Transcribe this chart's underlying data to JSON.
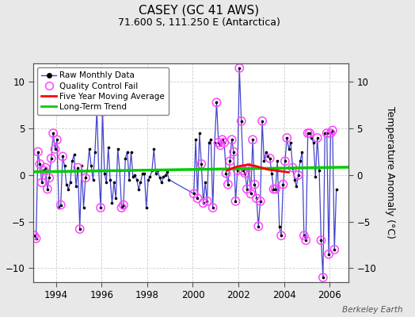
{
  "title": "CASEY (GC 41 AWS)",
  "subtitle": "71.600 S, 111.250 E (Antarctica)",
  "ylabel": "Temperature Anomaly (°C)",
  "watermark": "Berkeley Earth",
  "xlim": [
    1993.0,
    2006.83
  ],
  "ylim": [
    -11.5,
    12.0
  ],
  "yticks": [
    -10,
    -5,
    0,
    5,
    10
  ],
  "xticks": [
    1994,
    1996,
    1998,
    2000,
    2002,
    2004,
    2006
  ],
  "bg_color": "#e8e8e8",
  "plot_bg_color": "#ffffff",
  "grid_color": "#cccccc",
  "line_color": "#4444cc",
  "marker_color": "#000000",
  "qc_fail_color": "#ff44ff",
  "moving_avg_color": "#ff0000",
  "trend_color": "#00cc00",
  "raw_data": [
    [
      1993.042,
      -6.5
    ],
    [
      1993.125,
      -6.8
    ],
    [
      1993.208,
      2.5
    ],
    [
      1993.292,
      1.2
    ],
    [
      1993.375,
      -0.8
    ],
    [
      1993.458,
      0.5
    ],
    [
      1993.542,
      0.8
    ],
    [
      1993.625,
      -1.5
    ],
    [
      1993.708,
      -0.3
    ],
    [
      1993.792,
      1.8
    ],
    [
      1993.875,
      4.5
    ],
    [
      1993.958,
      2.8
    ],
    [
      1994.042,
      3.8
    ],
    [
      1994.125,
      -3.5
    ],
    [
      1994.208,
      -3.2
    ],
    [
      1994.292,
      2.0
    ],
    [
      1994.375,
      1.0
    ],
    [
      1994.458,
      -1.0
    ],
    [
      1994.542,
      -1.5
    ],
    [
      1994.625,
      -0.8
    ],
    [
      1994.708,
      1.5
    ],
    [
      1994.792,
      2.2
    ],
    [
      1994.875,
      -1.2
    ],
    [
      1994.958,
      0.8
    ],
    [
      1995.042,
      -5.8
    ],
    [
      1995.125,
      1.0
    ],
    [
      1995.208,
      -3.5
    ],
    [
      1995.292,
      -0.3
    ],
    [
      1995.375,
      0.5
    ],
    [
      1995.458,
      2.8
    ],
    [
      1995.542,
      1.0
    ],
    [
      1995.625,
      -0.5
    ],
    [
      1995.708,
      2.5
    ],
    [
      1995.792,
      7.0
    ],
    [
      1995.875,
      0.5
    ],
    [
      1995.958,
      -3.5
    ],
    [
      1996.042,
      6.8
    ],
    [
      1996.125,
      0.2
    ],
    [
      1996.208,
      -0.8
    ],
    [
      1996.292,
      3.0
    ],
    [
      1996.375,
      -0.5
    ],
    [
      1996.458,
      -3.0
    ],
    [
      1996.542,
      -0.8
    ],
    [
      1996.625,
      -2.5
    ],
    [
      1996.708,
      2.8
    ],
    [
      1996.792,
      0.5
    ],
    [
      1996.875,
      -3.5
    ],
    [
      1996.958,
      -3.2
    ],
    [
      1997.042,
      1.8
    ],
    [
      1997.125,
      2.5
    ],
    [
      1997.208,
      -0.5
    ],
    [
      1997.292,
      2.5
    ],
    [
      1997.375,
      -0.2
    ],
    [
      1997.458,
      0.0
    ],
    [
      1997.542,
      -0.5
    ],
    [
      1997.625,
      -1.5
    ],
    [
      1997.708,
      -0.8
    ],
    [
      1997.792,
      0.2
    ],
    [
      1997.875,
      0.2
    ],
    [
      1997.958,
      -3.5
    ],
    [
      1998.042,
      -0.5
    ],
    [
      1998.125,
      -0.2
    ],
    [
      1998.208,
      0.5
    ],
    [
      1998.292,
      2.8
    ],
    [
      1998.375,
      0.2
    ],
    [
      1998.458,
      0.5
    ],
    [
      1998.542,
      -0.3
    ],
    [
      1998.625,
      -0.8
    ],
    [
      1998.708,
      -0.2
    ],
    [
      1998.792,
      0.0
    ],
    [
      1998.875,
      0.3
    ],
    [
      1998.958,
      -0.5
    ],
    [
      2000.042,
      -2.0
    ],
    [
      2000.125,
      3.8
    ],
    [
      2000.208,
      -2.5
    ],
    [
      2000.292,
      4.5
    ],
    [
      2000.375,
      1.2
    ],
    [
      2000.458,
      -3.0
    ],
    [
      2000.542,
      -0.8
    ],
    [
      2000.625,
      -2.8
    ],
    [
      2000.708,
      3.5
    ],
    [
      2000.792,
      3.8
    ],
    [
      2000.875,
      -3.5
    ],
    [
      2000.958,
      3.5
    ],
    [
      2001.042,
      7.8
    ],
    [
      2001.125,
      3.5
    ],
    [
      2001.208,
      3.2
    ],
    [
      2001.292,
      3.8
    ],
    [
      2001.375,
      3.5
    ],
    [
      2001.458,
      0.2
    ],
    [
      2001.542,
      -1.0
    ],
    [
      2001.625,
      1.5
    ],
    [
      2001.708,
      3.8
    ],
    [
      2001.792,
      2.5
    ],
    [
      2001.875,
      -2.8
    ],
    [
      2001.958,
      0.5
    ],
    [
      2002.042,
      11.5
    ],
    [
      2002.125,
      5.8
    ],
    [
      2002.208,
      0.5
    ],
    [
      2002.292,
      0.2
    ],
    [
      2002.375,
      -1.5
    ],
    [
      2002.458,
      0.8
    ],
    [
      2002.542,
      -2.0
    ],
    [
      2002.625,
      3.8
    ],
    [
      2002.708,
      -1.0
    ],
    [
      2002.792,
      -2.5
    ],
    [
      2002.875,
      -5.5
    ],
    [
      2002.958,
      -2.8
    ],
    [
      2003.042,
      5.8
    ],
    [
      2003.125,
      1.5
    ],
    [
      2003.208,
      2.5
    ],
    [
      2003.292,
      2.0
    ],
    [
      2003.375,
      1.8
    ],
    [
      2003.458,
      0.2
    ],
    [
      2003.542,
      -1.5
    ],
    [
      2003.625,
      -1.5
    ],
    [
      2003.708,
      1.5
    ],
    [
      2003.792,
      -5.5
    ],
    [
      2003.875,
      -6.5
    ],
    [
      2003.958,
      -1.0
    ],
    [
      2004.042,
      1.5
    ],
    [
      2004.125,
      4.0
    ],
    [
      2004.208,
      2.8
    ],
    [
      2004.292,
      3.5
    ],
    [
      2004.375,
      0.8
    ],
    [
      2004.458,
      -0.5
    ],
    [
      2004.542,
      -1.2
    ],
    [
      2004.625,
      0.0
    ],
    [
      2004.708,
      1.5
    ],
    [
      2004.792,
      2.5
    ],
    [
      2004.875,
      -6.5
    ],
    [
      2004.958,
      -7.0
    ],
    [
      2005.042,
      4.5
    ],
    [
      2005.125,
      4.5
    ],
    [
      2005.208,
      4.0
    ],
    [
      2005.292,
      3.5
    ],
    [
      2005.375,
      -0.2
    ],
    [
      2005.458,
      4.0
    ],
    [
      2005.542,
      0.5
    ],
    [
      2005.625,
      -7.0
    ],
    [
      2005.708,
      -11.0
    ],
    [
      2005.792,
      4.5
    ],
    [
      2005.875,
      4.5
    ],
    [
      2005.958,
      -8.5
    ],
    [
      2006.042,
      4.5
    ],
    [
      2006.125,
      4.8
    ],
    [
      2006.208,
      -8.0
    ],
    [
      2006.292,
      -1.5
    ]
  ],
  "qc_fail_x": [
    1993.042,
    1993.125,
    1993.208,
    1993.292,
    1993.375,
    1993.458,
    1993.542,
    1993.625,
    1993.708,
    1993.792,
    1993.875,
    1993.958,
    1994.042,
    1994.208,
    1994.292,
    1994.958,
    1995.042,
    1995.292,
    1995.792,
    1995.958,
    1996.042,
    1996.875,
    1996.958,
    2000.042,
    2000.208,
    2000.375,
    2000.458,
    2000.625,
    2000.875,
    2001.042,
    2001.125,
    2001.208,
    2001.292,
    2001.375,
    2001.458,
    2001.542,
    2001.625,
    2001.708,
    2001.792,
    2001.875,
    2001.958,
    2002.042,
    2002.125,
    2002.208,
    2002.292,
    2002.375,
    2002.458,
    2002.542,
    2002.625,
    2002.708,
    2002.792,
    2002.875,
    2002.958,
    2003.042,
    2003.375,
    2003.542,
    2003.625,
    2003.875,
    2003.958,
    2004.042,
    2004.125,
    2004.375,
    2004.625,
    2004.875,
    2004.958,
    2005.042,
    2005.125,
    2005.458,
    2005.625,
    2005.708,
    2005.875,
    2005.958,
    2006.042,
    2006.125,
    2006.208
  ],
  "qc_fail_y": [
    -6.5,
    -6.8,
    2.5,
    1.2,
    -0.8,
    0.5,
    0.8,
    -1.5,
    -0.3,
    1.8,
    4.5,
    2.8,
    3.8,
    -3.2,
    2.0,
    0.8,
    -5.8,
    -0.3,
    7.0,
    -3.5,
    6.8,
    -3.5,
    -3.2,
    -2.0,
    -2.5,
    1.2,
    -3.0,
    -2.8,
    -3.5,
    7.8,
    3.5,
    3.2,
    3.8,
    3.5,
    0.2,
    -1.0,
    1.5,
    3.8,
    2.5,
    -2.8,
    0.5,
    11.5,
    5.8,
    0.5,
    0.2,
    -1.5,
    0.8,
    -2.0,
    3.8,
    -1.0,
    -2.5,
    -5.5,
    -2.8,
    5.8,
    1.8,
    -1.5,
    -1.5,
    -6.5,
    -1.0,
    1.5,
    4.0,
    0.8,
    0.0,
    -6.5,
    -7.0,
    4.5,
    4.5,
    4.0,
    -7.0,
    -11.0,
    4.5,
    -8.5,
    4.5,
    4.8,
    -8.0
  ],
  "moving_avg_x": [
    2001.5,
    2001.8,
    2002.1,
    2002.4,
    2002.7,
    2003.0,
    2003.3,
    2003.6,
    2003.9,
    2004.2
  ],
  "moving_avg_y": [
    0.5,
    0.8,
    1.0,
    1.1,
    1.0,
    0.8,
    0.6,
    0.5,
    0.4,
    0.3
  ],
  "trend_x": [
    1993.0,
    2006.83
  ],
  "trend_y": [
    0.35,
    0.85
  ]
}
